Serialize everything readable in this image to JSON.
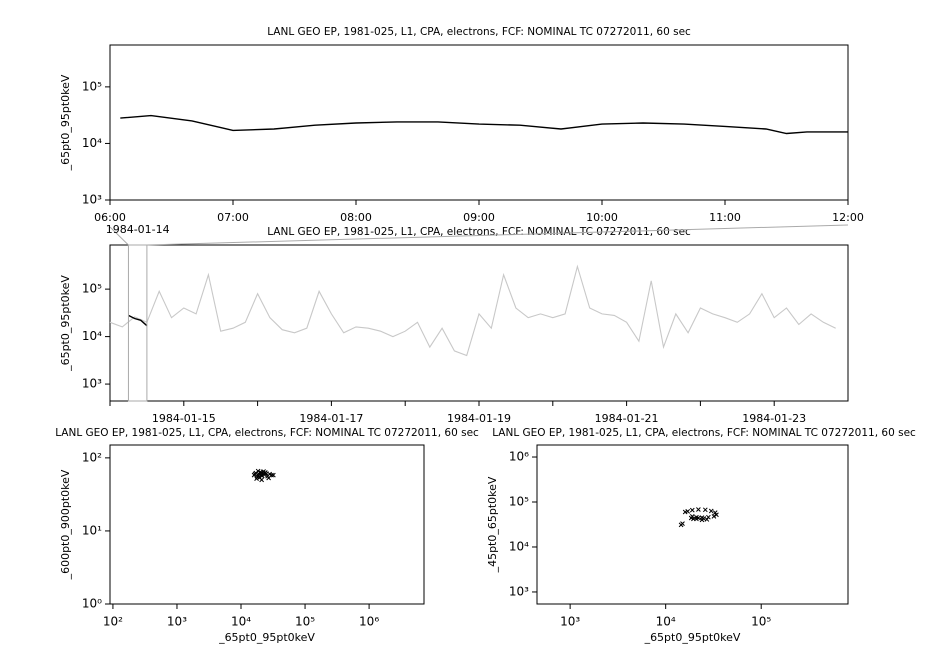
{
  "chart_data": [
    {
      "type": "line",
      "title": "LANL GEO EP, 1981-025, L1, CPA, electrons, FCF: NOMINAL TC 07272011, 60 sec",
      "ylabel": "_65pt0_95pt0keV",
      "xscale": "time",
      "yscale": "log",
      "xlim": [
        "06:00",
        "12:00"
      ],
      "xticks": [
        "06:00",
        "07:00",
        "08:00",
        "09:00",
        "10:00",
        "11:00",
        "12:00"
      ],
      "ylim": [
        1000,
        550000
      ],
      "yticks": [
        {
          "value": 1000,
          "label": "10³"
        },
        {
          "value": 10000,
          "label": "10⁴"
        },
        {
          "value": 100000,
          "label": "10⁵"
        }
      ],
      "series": [
        {
          "color": "#000000",
          "x": [
            "06:05",
            "06:20",
            "06:40",
            "07:00",
            "07:20",
            "07:40",
            "08:00",
            "08:20",
            "08:40",
            "09:00",
            "09:20",
            "09:40",
            "10:00",
            "10:20",
            "10:40",
            "11:00",
            "11:20",
            "11:30",
            "11:40",
            "12:00"
          ],
          "values": [
            28000,
            31000,
            25000,
            17000,
            18000,
            21000,
            23000,
            24000,
            24000,
            22000,
            21000,
            18000,
            22000,
            23000,
            22000,
            20000,
            18000,
            15000,
            16000,
            16000
          ]
        }
      ]
    },
    {
      "type": "line",
      "title": "LANL GEO EP, 1981-025, L1, CPA, electrons, FCF: NOMINAL TC 07272011, 60 sec",
      "ylabel": "_65pt0_95pt0keV",
      "annotation": "1984-01-14",
      "xscale": "time",
      "yscale": "log",
      "xlim": [
        "1984-01-14",
        "1984-01-24"
      ],
      "xticks": [
        "1984-01-15",
        "1984-01-17",
        "1984-01-19",
        "1984-01-21",
        "1984-01-23"
      ],
      "xminor": [
        "1984-01-14",
        "1984-01-16",
        "1984-01-18",
        "1984-01-20",
        "1984-01-22"
      ],
      "ylim": [
        440,
        850000
      ],
      "yticks": [
        {
          "value": 1000,
          "label": "10³"
        },
        {
          "value": 10000,
          "label": "10⁴"
        },
        {
          "value": 100000,
          "label": "10⁵"
        }
      ],
      "series": [
        {
          "color": "#c8c8c8",
          "x": [
            "1984-01-14T00:00",
            "1984-01-14T04:00",
            "1984-01-14T08:00",
            "1984-01-14T12:00",
            "1984-01-14T16:00",
            "1984-01-14T20:00",
            "1984-01-15T00:00",
            "1984-01-15T04:00",
            "1984-01-15T08:00",
            "1984-01-15T12:00",
            "1984-01-15T16:00",
            "1984-01-15T20:00",
            "1984-01-16T00:00",
            "1984-01-16T04:00",
            "1984-01-16T08:00",
            "1984-01-16T12:00",
            "1984-01-16T16:00",
            "1984-01-16T20:00",
            "1984-01-17T00:00",
            "1984-01-17T04:00",
            "1984-01-17T08:00",
            "1984-01-17T12:00",
            "1984-01-17T16:00",
            "1984-01-17T20:00",
            "1984-01-18T00:00",
            "1984-01-18T04:00",
            "1984-01-18T08:00",
            "1984-01-18T12:00",
            "1984-01-18T16:00",
            "1984-01-18T20:00",
            "1984-01-19T00:00",
            "1984-01-19T04:00",
            "1984-01-19T08:00",
            "1984-01-19T12:00",
            "1984-01-19T16:00",
            "1984-01-19T20:00",
            "1984-01-20T00:00",
            "1984-01-20T04:00",
            "1984-01-20T08:00",
            "1984-01-20T12:00",
            "1984-01-20T16:00",
            "1984-01-20T20:00",
            "1984-01-21T00:00",
            "1984-01-21T04:00",
            "1984-01-21T08:00",
            "1984-01-21T12:00",
            "1984-01-21T16:00",
            "1984-01-21T20:00",
            "1984-01-22T00:00",
            "1984-01-22T04:00",
            "1984-01-22T08:00",
            "1984-01-22T12:00",
            "1984-01-22T16:00",
            "1984-01-22T20:00",
            "1984-01-23T00:00",
            "1984-01-23T04:00",
            "1984-01-23T08:00",
            "1984-01-23T12:00",
            "1984-01-23T16:00",
            "1984-01-23T20:00"
          ],
          "values": [
            20000,
            16000,
            26000,
            20000,
            90000,
            25000,
            40000,
            30000,
            200000,
            13000,
            15000,
            20000,
            80000,
            25000,
            14000,
            12000,
            15000,
            90000,
            30000,
            12000,
            16000,
            15000,
            13000,
            10000,
            13000,
            20000,
            6000,
            15000,
            5000,
            4000,
            30000,
            15000,
            200000,
            40000,
            25000,
            30000,
            25000,
            30000,
            300000,
            40000,
            30000,
            28000,
            20000,
            8000,
            150000,
            6000,
            30000,
            12000,
            40000,
            30000,
            25000,
            20000,
            30000,
            80000,
            25000,
            40000,
            18000,
            30000,
            20000,
            15000
          ]
        },
        {
          "color": "#000000",
          "x": [
            "1984-01-14T06:00",
            "1984-01-14T08:00",
            "1984-01-14T10:00",
            "1984-01-14T12:00"
          ],
          "values": [
            28000,
            24000,
            22000,
            17000
          ]
        }
      ]
    },
    {
      "type": "scatter",
      "title": "LANL GEO EP, 1981-025, L1, CPA, electrons, FCF: NOMINAL TC 07272011, 60 sec",
      "xlabel": "_65pt0_95pt0keV",
      "ylabel": "_600pt0_900pt0keV",
      "xscale": "log",
      "yscale": "log",
      "xlim": [
        90,
        7200000
      ],
      "xticks": [
        {
          "value": 100,
          "label": "10²"
        },
        {
          "value": 1000,
          "label": "10³"
        },
        {
          "value": 10000,
          "label": "10⁴"
        },
        {
          "value": 100000,
          "label": "10⁵"
        },
        {
          "value": 1000000,
          "label": "10⁶"
        }
      ],
      "ylim": [
        1,
        150
      ],
      "yticks": [
        {
          "value": 1,
          "label": "10⁰"
        },
        {
          "value": 10,
          "label": "10¹"
        },
        {
          "value": 100,
          "label": "10²"
        }
      ],
      "series": [
        {
          "color": "#000000",
          "x": [
            16000,
            17000,
            18000,
            19000,
            20000,
            21000,
            22000,
            23000,
            24000,
            26000,
            28000,
            30000,
            17500,
            18500,
            19500,
            20500,
            21500,
            22500,
            25000,
            27000,
            16500,
            19000,
            21000,
            23500,
            32000
          ],
          "values": [
            58,
            62,
            55,
            60,
            64,
            57,
            61,
            59,
            63,
            56,
            60,
            58,
            52,
            66,
            54,
            62,
            57,
            65,
            61,
            53,
            60,
            57,
            50,
            62,
            58
          ]
        }
      ]
    },
    {
      "type": "scatter",
      "title": "LANL GEO EP, 1981-025, L1, CPA, electrons, FCF: NOMINAL TC 07272011, 60 sec",
      "xlabel": "_65pt0_95pt0keV",
      "ylabel": "_45pt0_65pt0keV",
      "xscale": "log",
      "yscale": "log",
      "xlim": [
        450,
        810000
      ],
      "xticks": [
        {
          "value": 1000,
          "label": "10³"
        },
        {
          "value": 10000,
          "label": "10⁴"
        },
        {
          "value": 100000,
          "label": "10⁵"
        }
      ],
      "ylim": [
        540,
        1850000
      ],
      "yticks": [
        {
          "value": 1000,
          "label": "10³"
        },
        {
          "value": 10000,
          "label": "10⁴"
        },
        {
          "value": 100000,
          "label": "10⁵"
        },
        {
          "value": 1000000,
          "label": "10⁶"
        }
      ],
      "series": [
        {
          "color": "#000000",
          "x": [
            16000,
            17000,
            19000,
            22000,
            26000,
            30000,
            33000,
            34000,
            32000,
            28000,
            24000,
            21000,
            19000,
            18500,
            19500,
            22000,
            25000,
            27000,
            24000,
            21000,
            15000,
            14500
          ],
          "values": [
            60000,
            62000,
            66000,
            68000,
            67000,
            63000,
            58000,
            52000,
            48000,
            46000,
            45000,
            46000,
            48000,
            44000,
            42000,
            44000,
            43000,
            41000,
            40000,
            42000,
            33000,
            31000
          ]
        }
      ]
    }
  ]
}
